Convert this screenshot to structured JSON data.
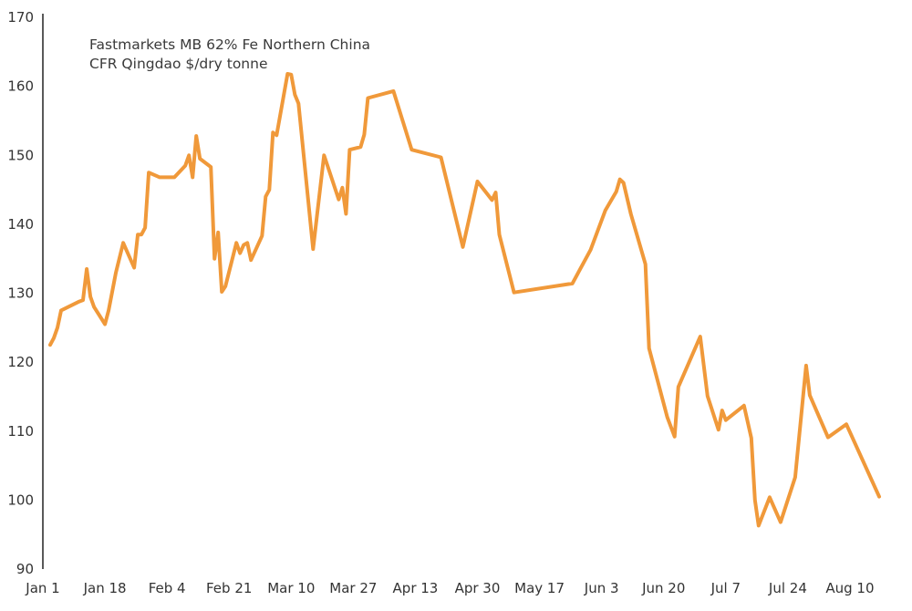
{
  "colors": {
    "series": "#F0993A",
    "axis": "#222222",
    "text": "#333333"
  },
  "chart_data": {
    "type": "line",
    "title_lines": [
      "Fastmarkets MB 62% Fe Northern China",
      "CFR Qingdao $/dry tonne"
    ],
    "xlabel": "",
    "ylabel": "",
    "ylim": [
      90,
      170
    ],
    "yticks": [
      90,
      100,
      110,
      120,
      130,
      140,
      150,
      160,
      170
    ],
    "x_ticks": [
      "Jan 1",
      "Jan 18",
      "Feb 4",
      "Feb 21",
      "Mar 10",
      "Mar 27",
      "Apr 13",
      "Apr 30",
      "May 17",
      "Jun 3",
      "Jun 20",
      "Jul 7",
      "Jul 24",
      "Aug 10"
    ],
    "xlim_days": [
      0,
      231
    ],
    "grid": false,
    "legend": "none",
    "series": [
      {
        "points": [
          [
            2,
            122.5
          ],
          [
            3,
            123.5
          ],
          [
            4,
            125.0
          ],
          [
            5,
            127.5
          ],
          [
            10,
            128.8
          ],
          [
            11,
            129.0
          ],
          [
            12,
            133.5
          ],
          [
            13,
            129.5
          ],
          [
            14,
            128.0
          ],
          [
            17,
            125.5
          ],
          [
            18,
            127.5
          ],
          [
            20,
            133.0
          ],
          [
            22,
            137.3
          ],
          [
            25,
            133.7
          ],
          [
            26,
            138.5
          ],
          [
            27,
            138.5
          ],
          [
            28,
            139.5
          ],
          [
            29,
            147.5
          ],
          [
            32,
            146.8
          ],
          [
            36,
            146.8
          ],
          [
            39,
            148.5
          ],
          [
            40,
            150.0
          ],
          [
            41,
            146.8
          ],
          [
            42,
            152.8
          ],
          [
            43,
            149.5
          ],
          [
            46,
            148.3
          ],
          [
            47,
            135.0
          ],
          [
            48,
            138.8
          ],
          [
            49,
            130.2
          ],
          [
            50,
            131.0
          ],
          [
            53,
            137.3
          ],
          [
            54,
            135.8
          ],
          [
            55,
            137.0
          ],
          [
            56,
            137.3
          ],
          [
            57,
            134.8
          ],
          [
            60,
            138.3
          ],
          [
            61,
            144.0
          ],
          [
            62,
            145.0
          ],
          [
            63,
            153.3
          ],
          [
            64,
            152.9
          ],
          [
            67,
            161.8
          ],
          [
            68,
            161.7
          ],
          [
            69,
            158.8
          ],
          [
            70,
            157.5
          ],
          [
            74,
            136.4
          ],
          [
            77,
            150.0
          ],
          [
            81,
            143.6
          ],
          [
            82,
            145.3
          ],
          [
            83,
            141.5
          ],
          [
            84,
            150.8
          ],
          [
            87,
            151.2
          ],
          [
            88,
            153.0
          ],
          [
            89,
            158.3
          ],
          [
            96,
            159.3
          ],
          [
            101,
            150.8
          ],
          [
            109,
            149.7
          ],
          [
            115,
            136.7
          ],
          [
            119,
            146.2
          ],
          [
            123,
            143.5
          ],
          [
            124,
            144.6
          ],
          [
            125,
            138.5
          ],
          [
            129,
            130.1
          ],
          [
            145,
            131.4
          ],
          [
            150,
            136.3
          ],
          [
            154,
            142.0
          ],
          [
            157,
            144.7
          ],
          [
            158,
            146.5
          ],
          [
            159,
            146.0
          ],
          [
            161,
            141.5
          ],
          [
            165,
            134.2
          ],
          [
            166,
            122.0
          ],
          [
            171,
            112.0
          ],
          [
            173,
            109.2
          ],
          [
            174,
            116.4
          ],
          [
            180,
            123.7
          ],
          [
            182,
            115.1
          ],
          [
            185,
            110.2
          ],
          [
            186,
            113.0
          ],
          [
            187,
            111.6
          ],
          [
            192,
            113.7
          ],
          [
            194,
            109.0
          ],
          [
            195,
            100.0
          ],
          [
            196,
            96.3
          ],
          [
            199,
            100.4
          ],
          [
            202,
            96.8
          ],
          [
            206,
            103.3
          ],
          [
            209,
            119.5
          ],
          [
            210,
            115.2
          ],
          [
            215,
            109.1
          ],
          [
            220,
            111.0
          ],
          [
            229,
            100.5
          ]
        ]
      }
    ]
  }
}
